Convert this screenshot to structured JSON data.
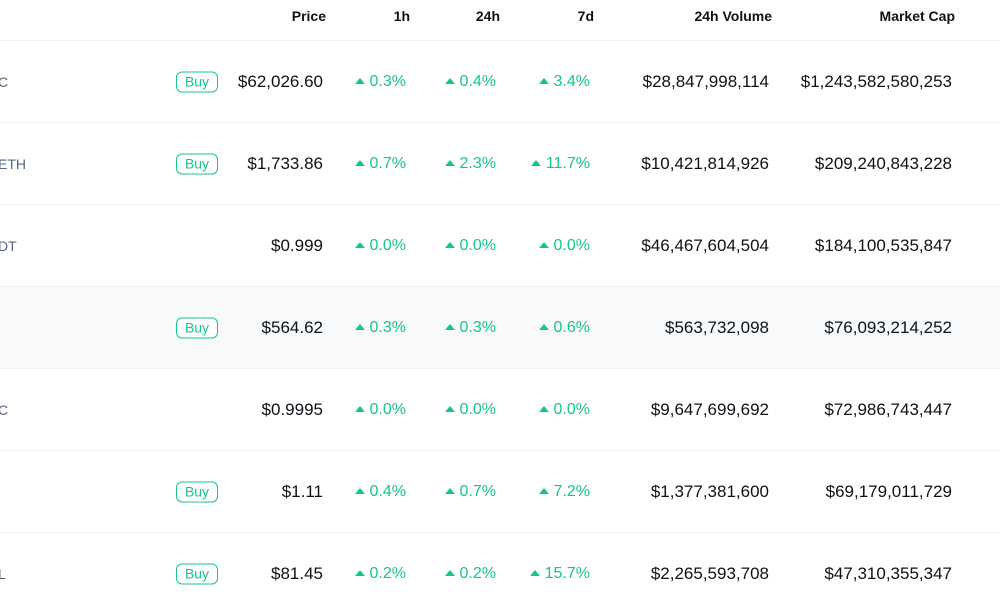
{
  "header": {
    "price": "Price",
    "h1": "1h",
    "h24": "24h",
    "d7": "7d",
    "volume": "24h Volume",
    "market_cap": "Market Cap"
  },
  "rows": [
    {
      "symbol": "C",
      "buy": "Buy",
      "price": "$62,026.60",
      "h1": "0.3%",
      "h24": "0.4%",
      "d7": "3.4%",
      "volume": "$28,847,998,114",
      "market_cap": "$1,243,582,580,253"
    },
    {
      "symbol": "ETH",
      "buy": "Buy",
      "price": "$1,733.86",
      "h1": "0.7%",
      "h24": "2.3%",
      "d7": "11.7%",
      "volume": "$10,421,814,926",
      "market_cap": "$209,240,843,228"
    },
    {
      "symbol": "DT",
      "buy": "",
      "price": "$0.999",
      "h1": "0.0%",
      "h24": "0.0%",
      "d7": "0.0%",
      "volume": "$46,467,604,504",
      "market_cap": "$184,100,535,847"
    },
    {
      "symbol": "",
      "buy": "Buy",
      "price": "$564.62",
      "h1": "0.3%",
      "h24": "0.3%",
      "d7": "0.6%",
      "volume": "$563,732,098",
      "market_cap": "$76,093,214,252"
    },
    {
      "symbol": "C",
      "buy": "",
      "price": "$0.9995",
      "h1": "0.0%",
      "h24": "0.0%",
      "d7": "0.0%",
      "volume": "$9,647,699,692",
      "market_cap": "$72,986,743,447"
    },
    {
      "symbol": "",
      "buy": "Buy",
      "price": "$1.11",
      "h1": "0.4%",
      "h24": "0.7%",
      "d7": "7.2%",
      "volume": "$1,377,381,600",
      "market_cap": "$69,179,011,729"
    },
    {
      "symbol": "L",
      "buy": "Buy",
      "price": "$81.45",
      "h1": "0.2%",
      "h24": "0.2%",
      "d7": "15.7%",
      "volume": "$2,265,593,708",
      "market_cap": "$47,310,355,347"
    }
  ],
  "colors": {
    "positive": "#16c784",
    "highlight_row": "#f8f9fb"
  },
  "highlighted_row_index": 3,
  "icons": {
    "change_up": "caret-up-icon"
  }
}
